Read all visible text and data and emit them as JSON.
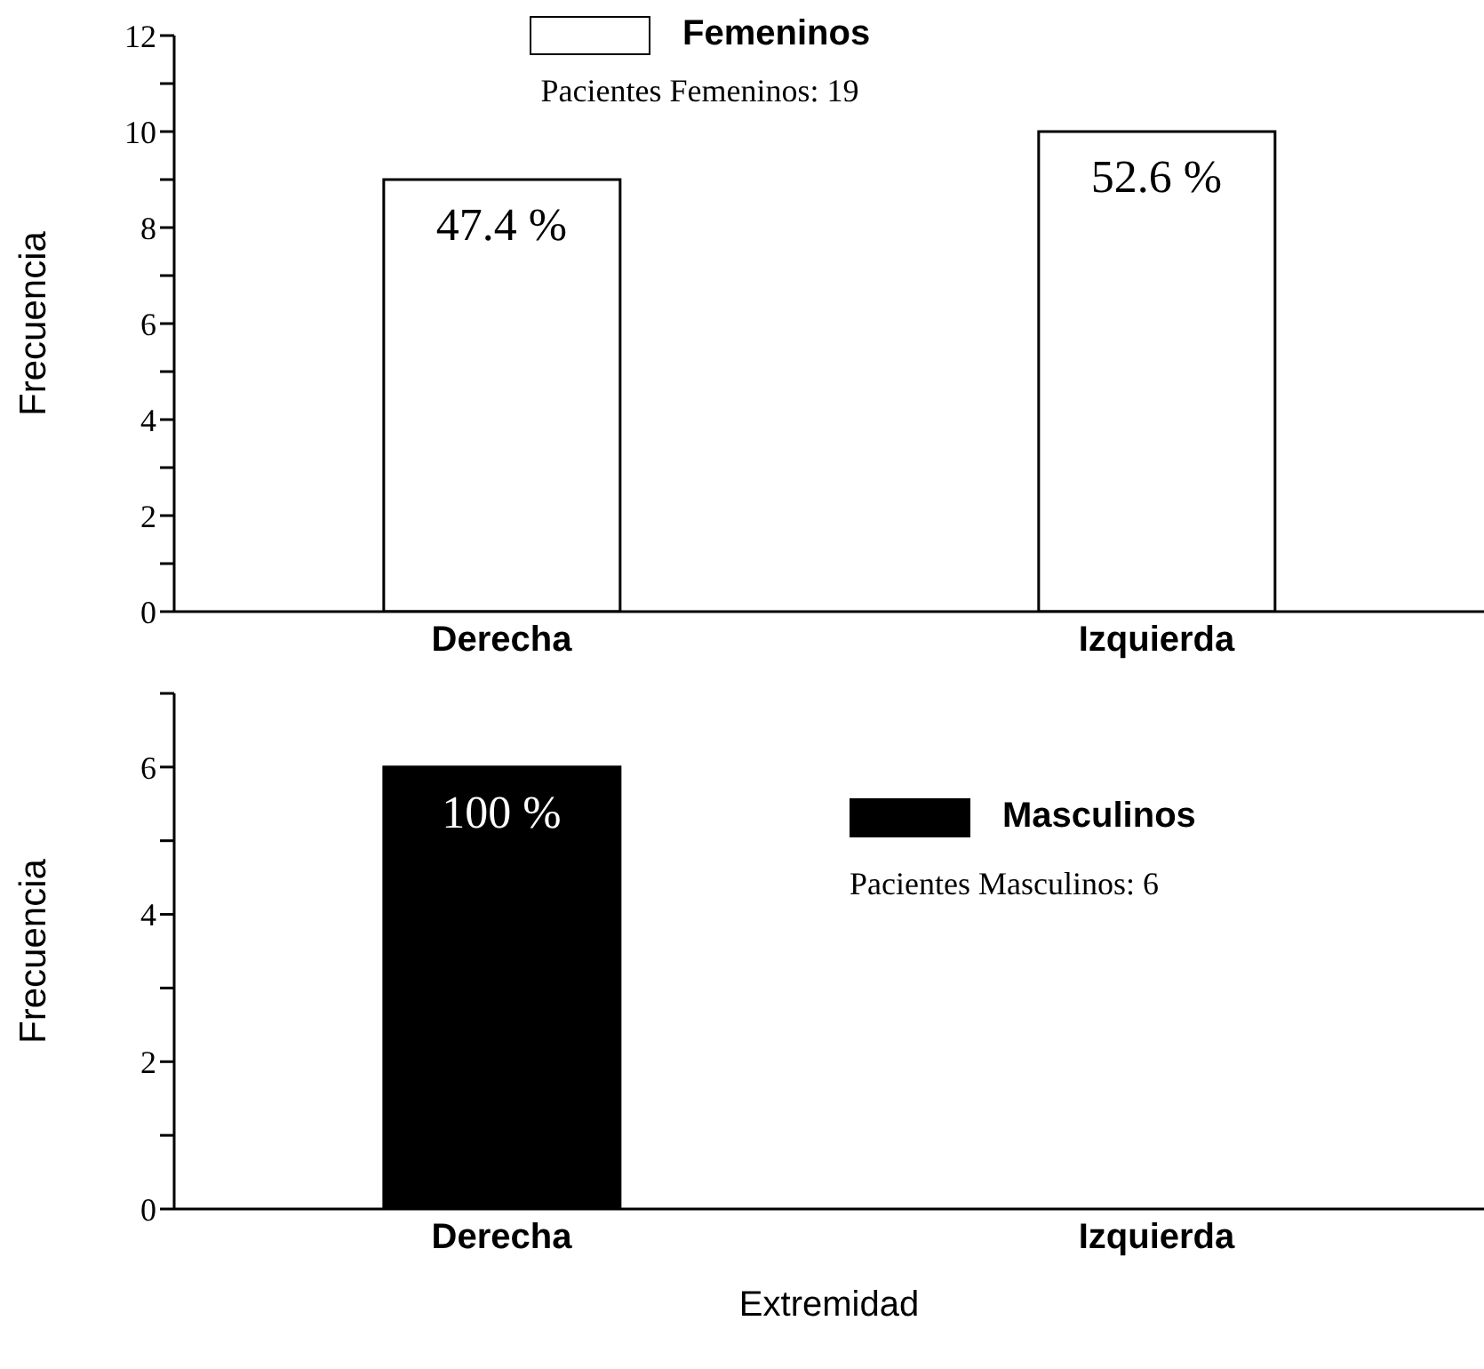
{
  "chart_data": [
    {
      "type": "bar",
      "categories": [
        "Derecha",
        "Izquierda"
      ],
      "ylabel": "Frecuencia",
      "ylim": [
        0,
        12
      ],
      "yticks": [
        0,
        {
          "value": 1,
          "label": null
        },
        2,
        {
          "value": 3,
          "label": null
        },
        4,
        {
          "value": 5,
          "label": null
        },
        6,
        {
          "value": 7,
          "label": null
        },
        8,
        {
          "value": 9,
          "label": null
        },
        10,
        {
          "value": 11,
          "label": null
        },
        12
      ],
      "legend": "top",
      "annotations": [
        "Pacientes Femeninos: 19",
        {
          "text": "47.4 %",
          "x": "Derecha",
          "y": 9
        },
        {
          "text": "52.6 %",
          "x": "Izquierda",
          "y": 10
        }
      ],
      "series": [
        {
          "name": "Femeninos",
          "color": "#ffffff",
          "values": [
            9,
            10
          ]
        }
      ]
    },
    {
      "type": "bar",
      "categories": [
        "Derecha",
        "Izquierda"
      ],
      "ylabel": "Frecuencia",
      "xlabel": "Extremidad",
      "ylim": [
        0,
        7
      ],
      "yticks": [
        0,
        {
          "value": 1,
          "label": null
        },
        2,
        {
          "value": 3,
          "label": null
        },
        4,
        {
          "value": 5,
          "label": null
        },
        6,
        {
          "value": 7,
          "label": null
        }
      ],
      "legend": "right",
      "annotations": [
        "Pacientes Masculinos: 6",
        {
          "text": "100 %",
          "x": "Derecha",
          "y": 6
        }
      ],
      "series": [
        {
          "name": "Masculinos",
          "color": "#000000",
          "values": [
            6,
            0
          ]
        }
      ]
    }
  ]
}
